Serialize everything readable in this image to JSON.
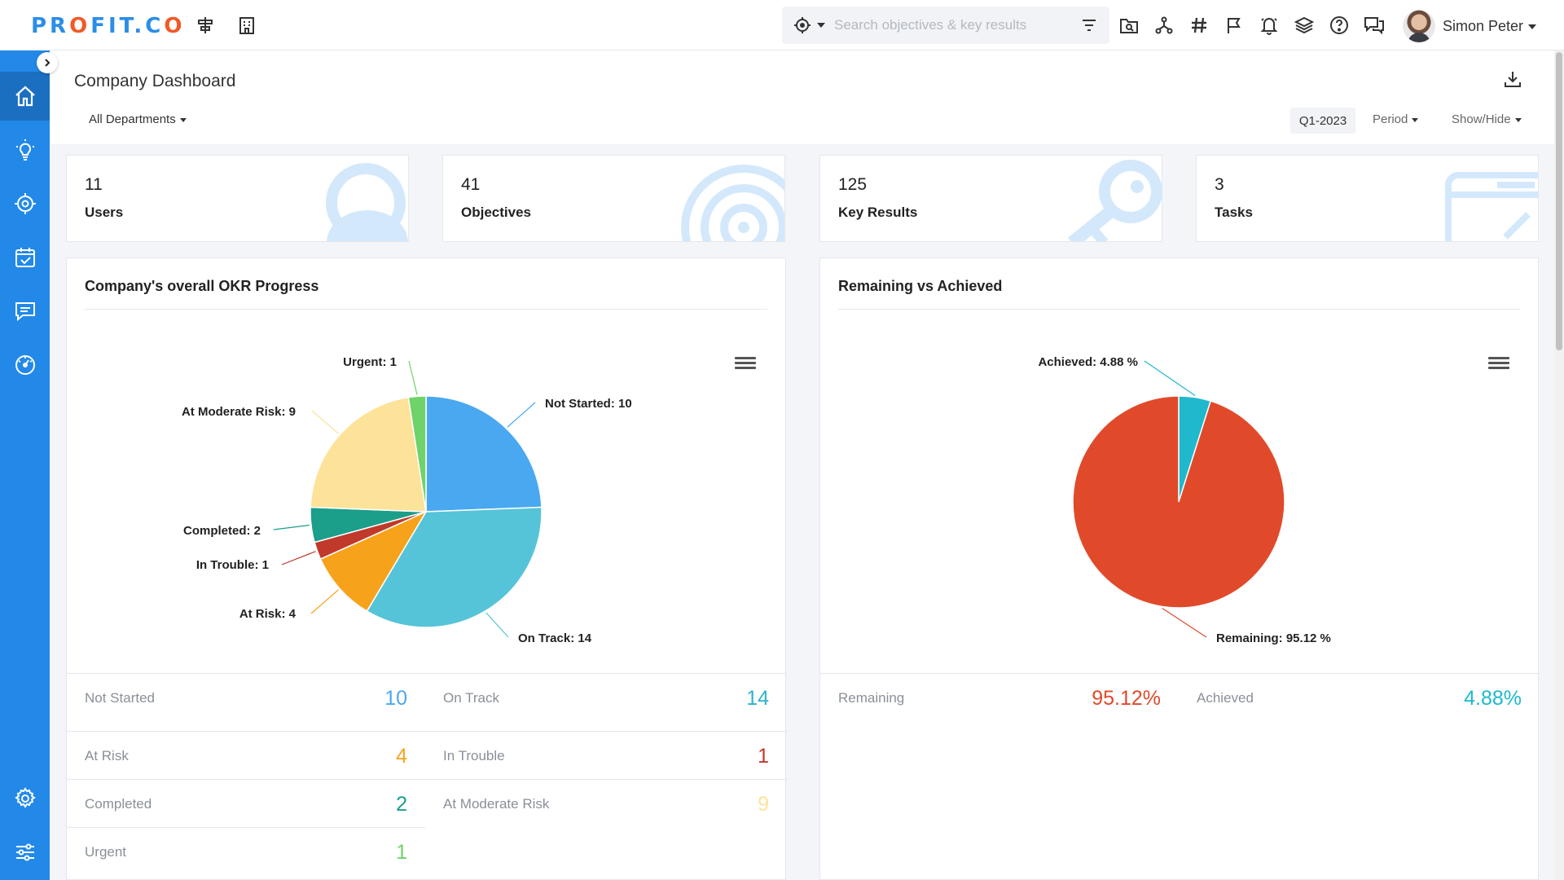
{
  "brand": {
    "logo": "PROFIT.CO"
  },
  "search": {
    "placeholder": "Search objectives & key results"
  },
  "user": {
    "name": "Simon Peter"
  },
  "header": {
    "title": "Company Dashboard",
    "department": "All Departments",
    "quarter": "Q1-2023",
    "period_label": "Period",
    "showhide_label": "Show/Hide"
  },
  "stats": [
    {
      "value": "11",
      "label": "Users",
      "icon": "user-icon"
    },
    {
      "value": "41",
      "label": "Objectives",
      "icon": "target-icon"
    },
    {
      "value": "125",
      "label": "Key Results",
      "icon": "key-icon"
    },
    {
      "value": "3",
      "label": "Tasks",
      "icon": "task-icon"
    }
  ],
  "colors": {
    "not_started": "#4aa8f0",
    "on_track": "#56c4d8",
    "at_risk": "#f7a21b",
    "in_trouble": "#c0392b",
    "completed": "#1b9e8a",
    "at_moderate_risk": "#fde299",
    "urgent": "#6fd26a",
    "remaining": "#e04a2a",
    "achieved": "#1fb8cc",
    "brand": "#2289e8"
  },
  "chart_data": [
    {
      "type": "pie",
      "title": "Company's overall OKR Progress",
      "slices": [
        {
          "label": "Not Started",
          "value": 10,
          "color": "#4aa8f0"
        },
        {
          "label": "On Track",
          "value": 14,
          "color": "#56c4d8"
        },
        {
          "label": "At Risk",
          "value": 4,
          "color": "#f7a21b"
        },
        {
          "label": "In Trouble",
          "value": 1,
          "color": "#c0392b"
        },
        {
          "label": "Completed",
          "value": 2,
          "color": "#1b9e8a"
        },
        {
          "label": "At Moderate Risk",
          "value": 9,
          "color": "#fde299"
        },
        {
          "label": "Urgent",
          "value": 1,
          "color": "#6fd26a"
        }
      ],
      "data_labels": [
        "Not Started: 10",
        "On Track: 14",
        "At Risk: 4",
        "In Trouble: 1",
        "Completed: 2",
        "At Moderate Risk: 9",
        "Urgent: 1"
      ]
    },
    {
      "type": "pie",
      "title": "Remaining vs Achieved",
      "slices": [
        {
          "label": "Achieved",
          "value": 4.88,
          "color": "#1fb8cc"
        },
        {
          "label": "Remaining",
          "value": 95.12,
          "color": "#e04a2a"
        }
      ],
      "data_labels": [
        "Achieved: 4.88 %",
        "Remaining: 95.12 %"
      ]
    }
  ],
  "okr_legend": [
    {
      "label": "Not Started",
      "value": "10",
      "color": "#4aa8f0"
    },
    {
      "label": "On Track",
      "value": "14",
      "color": "#56c4d8"
    },
    {
      "label": "At Risk",
      "value": "4",
      "color": "#f7a21b"
    },
    {
      "label": "In Trouble",
      "value": "1",
      "color": "#c0392b"
    },
    {
      "label": "Completed",
      "value": "2",
      "color": "#1b9e8a"
    },
    {
      "label": "At Moderate Risk",
      "value": "9",
      "color": "#fde299"
    },
    {
      "label": "Urgent",
      "value": "1",
      "color": "#6fd26a"
    }
  ],
  "rva_legend": [
    {
      "label": "Remaining",
      "value": "95.12%",
      "color": "#e04a2a"
    },
    {
      "label": "Achieved",
      "value": "4.88%",
      "color": "#1fb8cc"
    }
  ]
}
